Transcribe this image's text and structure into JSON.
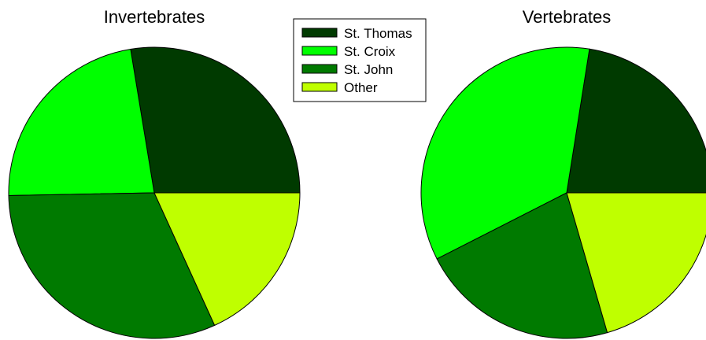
{
  "chart_data": {
    "type": "pie",
    "legend_placement": "top-center",
    "legend": [
      {
        "label": "St. Thomas",
        "color": "#003A00"
      },
      {
        "label": "St. Croix",
        "color": "#00FF00"
      },
      {
        "label": "St. John",
        "color": "#007A00"
      },
      {
        "label": "Other",
        "color": "#BFFF00"
      }
    ],
    "charts": [
      {
        "title": "Invertebrates",
        "slices": [
          {
            "label": "St. Thomas",
            "value": 27.6
          },
          {
            "label": "St. Croix",
            "value": 22.7
          },
          {
            "label": "St. John",
            "value": 31.5
          },
          {
            "label": "Other",
            "value": 18.2
          }
        ]
      },
      {
        "title": "Vertebrates",
        "slices": [
          {
            "label": "St. Thomas",
            "value": 22.5
          },
          {
            "label": "St. Croix",
            "value": 35.0
          },
          {
            "label": "St. John",
            "value": 22.0
          },
          {
            "label": "Other",
            "value": 20.5
          }
        ]
      }
    ]
  }
}
